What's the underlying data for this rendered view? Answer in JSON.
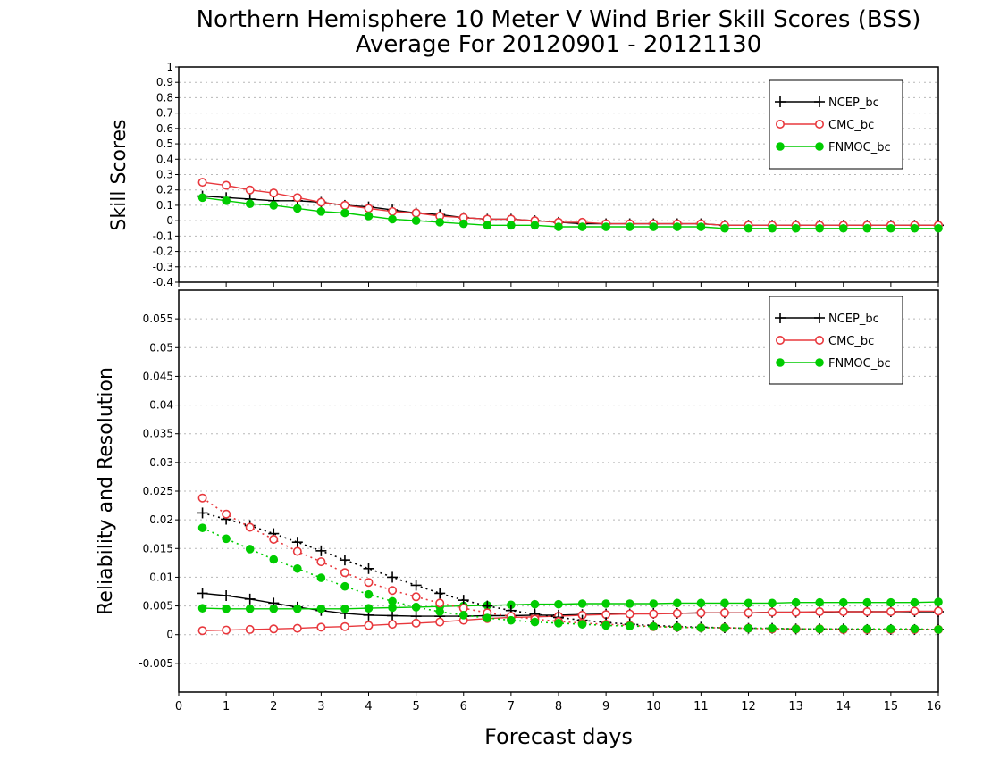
{
  "title_line1": "Northern Hemisphere 10 Meter V Wind Brier Skill Scores (BSS)",
  "title_line2": "Average For 20120901 - 20121130",
  "xlabel": "Forecast days",
  "colors": {
    "NCEP_bc": "#000000",
    "CMC_bc": "#e8383d",
    "FNMOC_bc": "#00cc00"
  },
  "chart_data": [
    {
      "type": "line",
      "ylabel": "Skill Scores",
      "xlim": [
        0,
        16
      ],
      "ylim": [
        -0.4,
        1
      ],
      "xticks": [
        0,
        1,
        2,
        3,
        4,
        5,
        6,
        7,
        8,
        9,
        10,
        11,
        12,
        13,
        14,
        15,
        16
      ],
      "yticks": [
        -0.4,
        -0.3,
        -0.2,
        -0.1,
        0,
        0.1,
        0.2,
        0.3,
        0.4,
        0.5,
        0.6,
        0.7,
        0.8,
        0.9,
        1
      ],
      "ytick_labels": [
        "-0.4",
        "-0.3",
        "-0.2",
        "-0.1",
        "0",
        "0.1",
        "0.2",
        "0.3",
        "0.4",
        "0.5",
        "0.6",
        "0.7",
        "0.8",
        "0.9",
        "1"
      ],
      "grid": true,
      "legend_position": "top-right",
      "x": [
        0.5,
        1,
        1.5,
        2,
        2.5,
        3,
        3.5,
        4,
        4.5,
        5,
        5.5,
        6,
        6.5,
        7,
        7.5,
        8,
        8.5,
        9,
        9.5,
        10,
        10.5,
        11,
        11.5,
        12,
        12.5,
        13,
        13.5,
        14,
        14.5,
        15,
        15.5,
        16
      ],
      "series": [
        {
          "name": "NCEP_bc",
          "marker": "plus",
          "style": "solid",
          "values": [
            0.16,
            0.15,
            0.14,
            0.13,
            0.13,
            0.12,
            0.1,
            0.09,
            0.07,
            0.05,
            0.04,
            0.02,
            0.01,
            0.01,
            0.0,
            -0.01,
            -0.02,
            -0.02,
            -0.02,
            -0.02,
            -0.02,
            -0.02,
            -0.03,
            -0.03,
            -0.03,
            -0.03,
            -0.03,
            -0.03,
            -0.03,
            -0.03,
            -0.03,
            -0.03
          ]
        },
        {
          "name": "CMC_bc",
          "marker": "open-circle",
          "style": "solid",
          "values": [
            0.25,
            0.23,
            0.2,
            0.18,
            0.15,
            0.12,
            0.1,
            0.08,
            0.06,
            0.05,
            0.03,
            0.02,
            0.01,
            0.01,
            0.0,
            -0.01,
            -0.01,
            -0.02,
            -0.02,
            -0.02,
            -0.02,
            -0.02,
            -0.03,
            -0.03,
            -0.03,
            -0.03,
            -0.03,
            -0.03,
            -0.03,
            -0.03,
            -0.03,
            -0.03
          ]
        },
        {
          "name": "FNMOC_bc",
          "marker": "filled-circle",
          "style": "solid",
          "values": [
            0.15,
            0.13,
            0.11,
            0.1,
            0.08,
            0.06,
            0.05,
            0.03,
            0.01,
            0.0,
            -0.01,
            -0.02,
            -0.03,
            -0.03,
            -0.03,
            -0.04,
            -0.04,
            -0.04,
            -0.04,
            -0.04,
            -0.04,
            -0.04,
            -0.05,
            -0.05,
            -0.05,
            -0.05,
            -0.05,
            -0.05,
            -0.05,
            -0.05,
            -0.05,
            -0.05
          ]
        }
      ]
    },
    {
      "type": "line",
      "ylabel": "Reliability and Resolution",
      "xlim": [
        0,
        16
      ],
      "ylim": [
        -0.01,
        0.06
      ],
      "xticks": [
        0,
        1,
        2,
        3,
        4,
        5,
        6,
        7,
        8,
        9,
        10,
        11,
        12,
        13,
        14,
        15,
        16
      ],
      "yticks": [
        -0.005,
        0,
        0.005,
        0.01,
        0.015,
        0.02,
        0.025,
        0.03,
        0.035,
        0.04,
        0.045,
        0.05,
        0.055
      ],
      "ytick_labels": [
        "-0.005",
        "0",
        "0.005",
        "0.01",
        "0.015",
        "0.02",
        "0.025",
        "0.03",
        "0.035",
        "0.04",
        "0.045",
        "0.05",
        "0.055"
      ],
      "grid": true,
      "legend_position": "top-right",
      "x": [
        0.5,
        1,
        1.5,
        2,
        2.5,
        3,
        3.5,
        4,
        4.5,
        5,
        5.5,
        6,
        6.5,
        7,
        7.5,
        8,
        8.5,
        9,
        9.5,
        10,
        10.5,
        11,
        11.5,
        12,
        12.5,
        13,
        13.5,
        14,
        14.5,
        15,
        15.5,
        16
      ],
      "series": [
        {
          "name": "NCEP_bc",
          "component": "reliability",
          "marker": "plus",
          "style": "solid",
          "values": [
            0.0072,
            0.0068,
            0.0062,
            0.0055,
            0.0048,
            0.0042,
            0.0037,
            0.0034,
            0.0033,
            0.0032,
            0.0032,
            0.0032,
            0.0033,
            0.0033,
            0.0034,
            0.0034,
            0.0035,
            0.0036,
            0.0036,
            0.0037,
            0.0037,
            0.0038,
            0.0038,
            0.0038,
            0.0039,
            0.0039,
            0.0039,
            0.004,
            0.004,
            0.004,
            0.004,
            0.004
          ]
        },
        {
          "name": "CMC_bc",
          "component": "reliability",
          "marker": "open-circle",
          "style": "solid",
          "values": [
            0.0007,
            0.0008,
            0.0009,
            0.001,
            0.0011,
            0.0013,
            0.0014,
            0.0016,
            0.0018,
            0.002,
            0.0022,
            0.0025,
            0.0028,
            0.003,
            0.0031,
            0.0032,
            0.0034,
            0.0035,
            0.0036,
            0.0036,
            0.0037,
            0.0038,
            0.0038,
            0.0038,
            0.0039,
            0.0039,
            0.004,
            0.004,
            0.004,
            0.004,
            0.0041,
            0.0041
          ]
        },
        {
          "name": "FNMOC_bc",
          "component": "reliability",
          "marker": "filled-circle",
          "style": "solid",
          "values": [
            0.0046,
            0.0045,
            0.0045,
            0.0045,
            0.0045,
            0.0045,
            0.0045,
            0.0046,
            0.0047,
            0.0048,
            0.0049,
            0.005,
            0.0051,
            0.0052,
            0.0053,
            0.0053,
            0.0054,
            0.0054,
            0.0054,
            0.0054,
            0.0055,
            0.0055,
            0.0055,
            0.0055,
            0.0055,
            0.0056,
            0.0056,
            0.0056,
            0.0056,
            0.0056,
            0.0056,
            0.0057
          ]
        },
        {
          "name": "NCEP_bc",
          "component": "resolution",
          "marker": "plus",
          "style": "dotted",
          "values": [
            0.0212,
            0.0201,
            0.019,
            0.0176,
            0.0161,
            0.0146,
            0.013,
            0.0115,
            0.01,
            0.0086,
            0.0072,
            0.006,
            0.005,
            0.0042,
            0.0036,
            0.003,
            0.0025,
            0.0021,
            0.0018,
            0.0016,
            0.0014,
            0.0013,
            0.0012,
            0.0011,
            0.0011,
            0.001,
            0.001,
            0.001,
            0.0009,
            0.0009,
            0.0009,
            0.0009
          ]
        },
        {
          "name": "CMC_bc",
          "component": "resolution",
          "marker": "open-circle",
          "style": "dotted",
          "values": [
            0.0238,
            0.021,
            0.0187,
            0.0166,
            0.0145,
            0.0127,
            0.0108,
            0.0091,
            0.0077,
            0.0066,
            0.0055,
            0.0046,
            0.0038,
            0.0032,
            0.0027,
            0.0023,
            0.002,
            0.0018,
            0.0016,
            0.0014,
            0.0013,
            0.0012,
            0.0012,
            0.0011,
            0.001,
            0.001,
            0.001,
            0.0009,
            0.0009,
            0.0009,
            0.0009,
            0.0009
          ]
        },
        {
          "name": "FNMOC_bc",
          "component": "resolution",
          "marker": "filled-circle",
          "style": "dotted",
          "values": [
            0.0186,
            0.0167,
            0.0149,
            0.0131,
            0.0115,
            0.0099,
            0.0084,
            0.007,
            0.0058,
            0.0048,
            0.004,
            0.0034,
            0.0029,
            0.0025,
            0.0022,
            0.002,
            0.0018,
            0.0016,
            0.0015,
            0.0014,
            0.0013,
            0.0012,
            0.0012,
            0.0011,
            0.0011,
            0.001,
            0.001,
            0.001,
            0.001,
            0.001,
            0.001,
            0.0009
          ]
        }
      ]
    }
  ]
}
